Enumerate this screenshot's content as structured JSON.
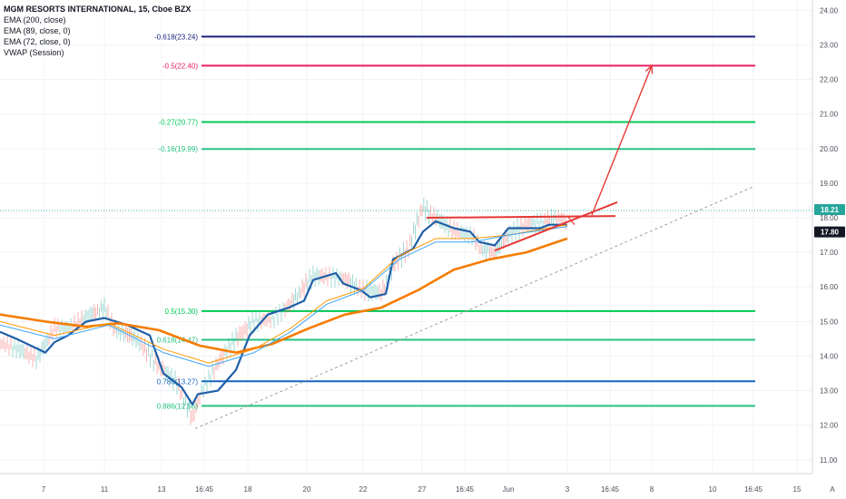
{
  "legend": {
    "title": "MGM RESORTS INTERNATIONAL, 15, Cboe BZX",
    "lines": [
      "EMA (200, close)",
      "EMA (89, close, 0)",
      "EMA (72, close, 0)",
      "VWAP (Session)"
    ]
  },
  "chart_data": {
    "type": "line",
    "title": "MGM RESORTS INTERNATIONAL, 15, Cboe BZX",
    "ylim": [
      10.6,
      24.3
    ],
    "y_ticks": [
      "24.00",
      "23.00",
      "22.00",
      "21.00",
      "20.00",
      "19.00",
      "18.00",
      "17.00",
      "16.00",
      "15.00",
      "14.00",
      "13.00",
      "12.00",
      "11.00"
    ],
    "x_ticks": [
      "7",
      "11",
      "13",
      "16:45",
      "18",
      "20",
      "22",
      "27",
      "16:45",
      "Jun",
      "3",
      "16:45",
      "8",
      "10",
      "16:45",
      "15"
    ],
    "price_tags": [
      {
        "label": "18.21",
        "value": 18.21,
        "color": "#26a69a"
      },
      {
        "label": "17.80",
        "value": 17.8,
        "color": "#131722"
      }
    ],
    "fib_levels": [
      {
        "label": "-0.618(23.24)",
        "value": 23.24,
        "color": "#1a237e"
      },
      {
        "label": "-0.5(22.40)",
        "value": 22.4,
        "color": "#e91e63"
      },
      {
        "label": "-0.27(20.77)",
        "value": 20.77,
        "color": "#00c853"
      },
      {
        "label": "-0.16(19.99)",
        "value": 19.99,
        "color": "#26c281"
      },
      {
        "label": "0.5(15.30)",
        "value": 15.3,
        "color": "#00c853"
      },
      {
        "label": "0.618(14.47)",
        "value": 14.47,
        "color": "#26c281"
      },
      {
        "label": "0.786(13.27)",
        "value": 13.27,
        "color": "#1565c0"
      },
      {
        "label": "0.886(12.56)",
        "value": 12.56,
        "color": "#26c281"
      }
    ],
    "series": [
      {
        "name": "VWAP (Session)",
        "color": "#1f5fa8",
        "width": 2.2,
        "points": [
          [
            0,
            14.7
          ],
          [
            18,
            14.5
          ],
          [
            50,
            14.1
          ],
          [
            60,
            14.4
          ],
          [
            75,
            14.6
          ],
          [
            95,
            15.0
          ],
          [
            115,
            15.1
          ],
          [
            140,
            14.9
          ],
          [
            165,
            14.6
          ],
          [
            180,
            13.5
          ],
          [
            200,
            13.1
          ],
          [
            212,
            12.6
          ],
          [
            218,
            12.9
          ],
          [
            240,
            13.0
          ],
          [
            260,
            13.6
          ],
          [
            275,
            14.6
          ],
          [
            295,
            15.2
          ],
          [
            318,
            15.4
          ],
          [
            335,
            15.6
          ],
          [
            345,
            16.2
          ],
          [
            370,
            16.4
          ],
          [
            378,
            16.1
          ],
          [
            398,
            15.9
          ],
          [
            408,
            15.7
          ],
          [
            425,
            15.8
          ],
          [
            433,
            16.8
          ],
          [
            455,
            17.1
          ],
          [
            466,
            17.6
          ],
          [
            480,
            17.9
          ],
          [
            500,
            17.7
          ],
          [
            518,
            17.6
          ],
          [
            528,
            17.3
          ],
          [
            545,
            17.2
          ],
          [
            560,
            17.7
          ],
          [
            595,
            17.7
          ],
          [
            605,
            17.8
          ],
          [
            625,
            17.8
          ]
        ]
      },
      {
        "name": "EMA (200, close)",
        "color": "#f57c00",
        "width": 2.6,
        "points": [
          [
            0,
            15.2
          ],
          [
            50,
            15.0
          ],
          [
            95,
            14.85
          ],
          [
            130,
            14.95
          ],
          [
            175,
            14.75
          ],
          [
            220,
            14.3
          ],
          [
            260,
            14.1
          ],
          [
            300,
            14.35
          ],
          [
            340,
            14.8
          ],
          [
            380,
            15.2
          ],
          [
            420,
            15.4
          ],
          [
            460,
            15.9
          ],
          [
            500,
            16.5
          ],
          [
            540,
            16.8
          ],
          [
            580,
            17.0
          ],
          [
            625,
            17.4
          ]
        ]
      },
      {
        "name": "EMA (89, close, 0)",
        "color": "#ff9800",
        "width": 1.0,
        "points": [
          [
            0,
            15.0
          ],
          [
            60,
            14.6
          ],
          [
            120,
            14.95
          ],
          [
            180,
            14.2
          ],
          [
            230,
            13.8
          ],
          [
            280,
            14.2
          ],
          [
            320,
            14.8
          ],
          [
            360,
            15.6
          ],
          [
            400,
            15.95
          ],
          [
            440,
            16.9
          ],
          [
            480,
            17.4
          ],
          [
            520,
            17.4
          ],
          [
            560,
            17.5
          ],
          [
            625,
            17.8
          ]
        ]
      },
      {
        "name": "EMA (72, close, 0)",
        "color": "#42a5f5",
        "width": 1.0,
        "points": [
          [
            0,
            14.9
          ],
          [
            60,
            14.5
          ],
          [
            120,
            14.9
          ],
          [
            180,
            14.1
          ],
          [
            230,
            13.7
          ],
          [
            280,
            14.1
          ],
          [
            320,
            14.7
          ],
          [
            360,
            15.5
          ],
          [
            400,
            15.9
          ],
          [
            440,
            16.8
          ],
          [
            480,
            17.3
          ],
          [
            520,
            17.3
          ],
          [
            560,
            17.5
          ],
          [
            625,
            17.75
          ]
        ]
      },
      {
        "name": "Price",
        "color": "#777777",
        "width": 0.8,
        "points": [
          [
            0,
            14.4
          ],
          [
            20,
            14.2
          ],
          [
            40,
            13.9
          ],
          [
            60,
            14.8
          ],
          [
            80,
            14.9
          ],
          [
            100,
            15.2
          ],
          [
            115,
            15.4
          ],
          [
            125,
            14.8
          ],
          [
            150,
            14.5
          ],
          [
            175,
            13.7
          ],
          [
            195,
            13.2
          ],
          [
            212,
            12.2
          ],
          [
            222,
            13.0
          ],
          [
            240,
            13.8
          ],
          [
            260,
            14.5
          ],
          [
            280,
            15.0
          ],
          [
            300,
            15.1
          ],
          [
            320,
            15.5
          ],
          [
            335,
            16.0
          ],
          [
            345,
            16.3
          ],
          [
            375,
            16.3
          ],
          [
            400,
            15.9
          ],
          [
            420,
            15.8
          ],
          [
            435,
            16.7
          ],
          [
            450,
            17.1
          ],
          [
            465,
            18.3
          ],
          [
            480,
            18.0
          ],
          [
            500,
            17.6
          ],
          [
            520,
            17.5
          ],
          [
            530,
            17.1
          ],
          [
            545,
            17.0
          ],
          [
            560,
            17.5
          ],
          [
            580,
            17.8
          ],
          [
            600,
            17.9
          ],
          [
            615,
            18.0
          ],
          [
            625,
            17.9
          ]
        ]
      }
    ],
    "annotations": {
      "dashed_trend": {
        "color": "#9e9e9e",
        "from": [
          215,
          11.9
        ],
        "to": [
          830,
          18.9
        ]
      },
      "support_trend": {
        "color": "#e53935",
        "from": [
          545,
          17.05
        ],
        "to": [
          680,
          18.45
        ]
      },
      "resistance": {
        "color": "#e53935",
        "from": [
          470,
          18.0
        ],
        "to": [
          678,
          18.05
        ]
      },
      "projection_arrow": {
        "color": "#e53935",
        "from": [
          652,
          18.08
        ],
        "to": [
          718,
          22.4
        ]
      },
      "small_arrow": {
        "color": "#e53935",
        "from": [
          625,
          18.05
        ],
        "to": [
          633,
          17.8
        ]
      }
    }
  }
}
